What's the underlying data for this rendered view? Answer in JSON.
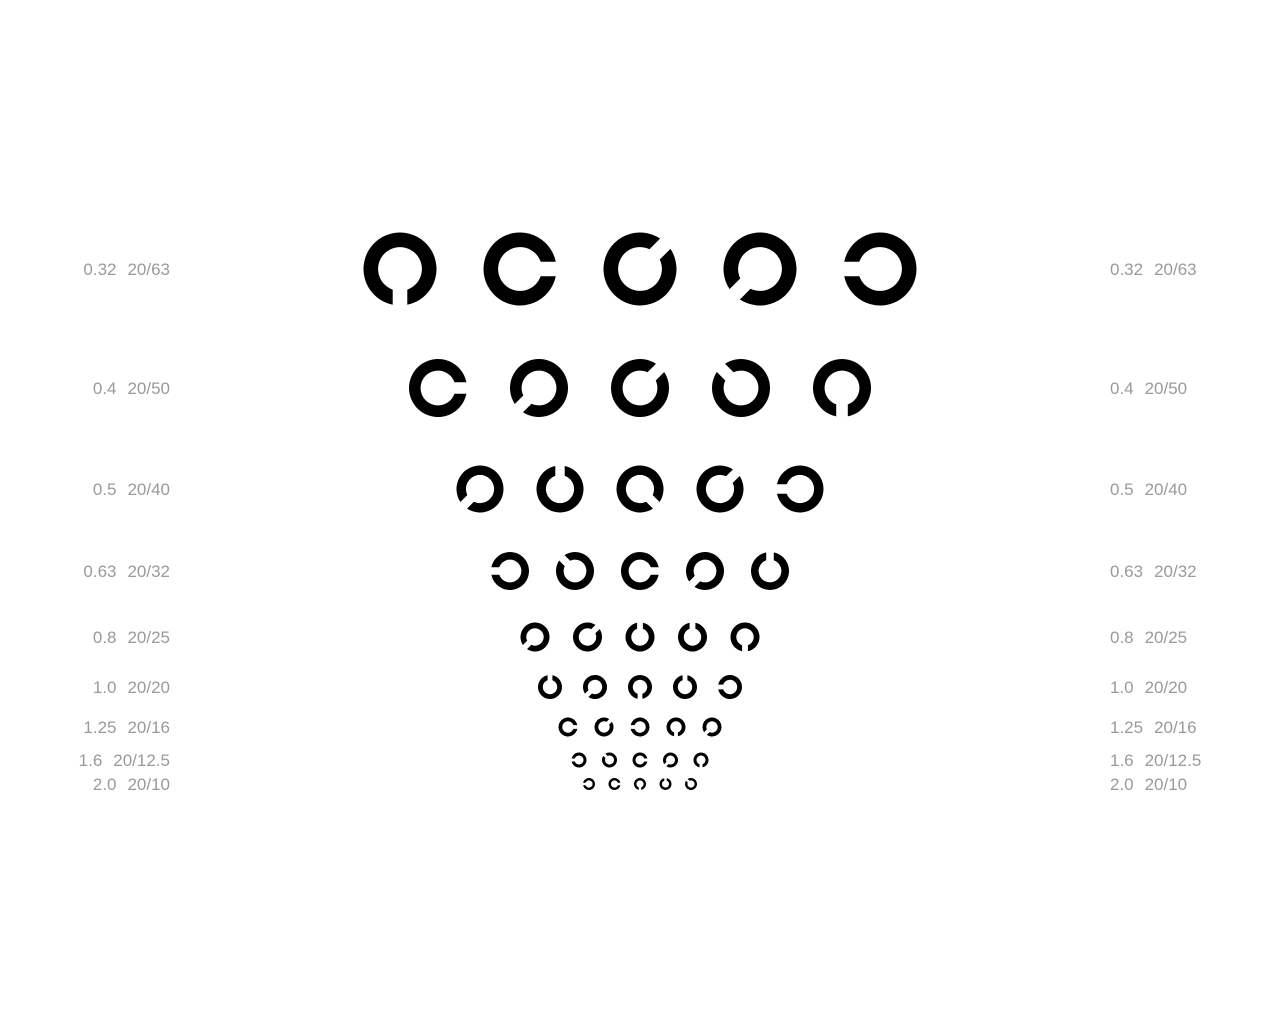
{
  "chart": {
    "name": "landolt-c-acuity-chart",
    "optotype": "landolt-c",
    "colors": {
      "background": "#ffffff",
      "optotype": "#000000",
      "label": "#9a9a9a"
    },
    "rows": [
      {
        "decimal": "0.32",
        "snellen": "20/63",
        "gaps": [
          "down",
          "right",
          "up-right",
          "down-left",
          "left"
        ]
      },
      {
        "decimal": "0.4",
        "snellen": "20/50",
        "gaps": [
          "right",
          "down-left",
          "up-right",
          "up-left",
          "down"
        ]
      },
      {
        "decimal": "0.5",
        "snellen": "20/40",
        "gaps": [
          "down-left",
          "up",
          "down-right",
          "up-right",
          "left"
        ]
      },
      {
        "decimal": "0.63",
        "snellen": "20/32",
        "gaps": [
          "left",
          "up-left",
          "right",
          "down-left",
          "up"
        ]
      },
      {
        "decimal": "0.8",
        "snellen": "20/25",
        "gaps": [
          "down-left",
          "up-right",
          "up",
          "up",
          "down"
        ]
      },
      {
        "decimal": "1.0",
        "snellen": "20/20",
        "gaps": [
          "up",
          "down-left",
          "down",
          "up",
          "left"
        ]
      },
      {
        "decimal": "1.25",
        "snellen": "20/16",
        "gaps": [
          "right",
          "up-right",
          "left",
          "down",
          "down-left"
        ]
      },
      {
        "decimal": "1.6",
        "snellen": "20/12.5",
        "gaps": [
          "left",
          "up-left",
          "right",
          "down-left",
          "down"
        ]
      },
      {
        "decimal": "2.0",
        "snellen": "20/10",
        "gaps": [
          "left",
          "right",
          "down",
          "up",
          "up-left"
        ]
      }
    ]
  }
}
